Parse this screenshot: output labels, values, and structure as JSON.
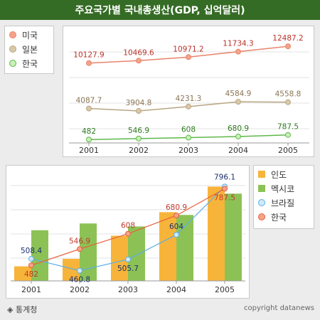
{
  "title": "주요국가별 국내총생산(GDP, 십억달러)",
  "source": "◈ 통계청",
  "copyright": "copyright datanews",
  "chart_data": [
    {
      "type": "line",
      "x": [
        "2001",
        "2002",
        "2003",
        "2004",
        "2005"
      ],
      "series": [
        {
          "name": "미국",
          "color": "#e8836a",
          "marker": "#f4a38a",
          "values": [
            10127.9,
            10469.6,
            10971.2,
            11734.3,
            12487.2
          ],
          "labels": [
            "10127.9",
            "10469.6",
            "10971.2",
            "11734.3",
            "12487.2"
          ],
          "label_color": "#b8322a"
        },
        {
          "name": "일본",
          "color": "#b8a582",
          "marker": "#d9c9a8",
          "values": [
            4087.7,
            3904.8,
            4231.3,
            4584.9,
            4558.8
          ],
          "labels": [
            "4087.7",
            "3904.8",
            "4231.3",
            "4584.9",
            "4558.8"
          ],
          "label_color": "#8a7455"
        },
        {
          "name": "한국",
          "color": "#5fb84a",
          "marker": "#c8f0b8",
          "values": [
            482,
            546.9,
            608,
            680.9,
            787.5
          ],
          "labels": [
            "482",
            "546.9",
            "608",
            "680.9",
            "787.5"
          ],
          "label_color": "#2d7a1e"
        }
      ]
    },
    {
      "type": "bar",
      "categories": [
        "2001",
        "2002",
        "2003",
        "2004",
        "2005"
      ],
      "series": [
        {
          "name": "인도",
          "kind": "bar",
          "color": "#f7b43a",
          "values": [
            478,
            508,
            600,
            694,
            796.1
          ]
        },
        {
          "name": "멕시코",
          "kind": "bar",
          "color": "#8cc255",
          "values": [
            622,
            649,
            637,
            683,
            768
          ]
        },
        {
          "name": "브라질",
          "kind": "line",
          "color": "#5aaee8",
          "marker": "#cfe9fb",
          "values": [
            508.4,
            460.8,
            505.7,
            604,
            796.1
          ],
          "labels": [
            "508.4",
            "460.8",
            "505.7",
            "604",
            "796.1"
          ],
          "label_color": "#1b2f6e"
        },
        {
          "name": "한국",
          "kind": "line",
          "color": "#e8603c",
          "marker": "#f4a38a",
          "values": [
            482,
            546.9,
            608,
            680.9,
            787.5
          ],
          "labels": [
            "482",
            "546.9",
            "608",
            "680.9",
            "787.5"
          ],
          "label_color": "#c0392b"
        }
      ]
    }
  ]
}
